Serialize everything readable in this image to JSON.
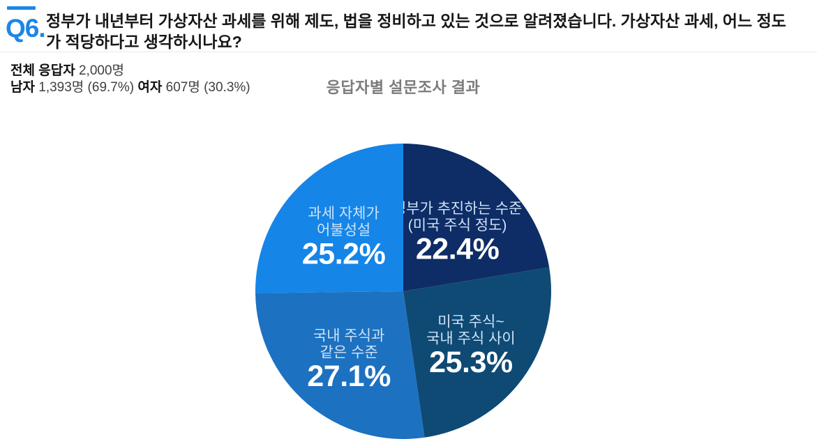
{
  "question": {
    "number": "Q6.",
    "text": "정부가 내년부터 가상자산 과세를 위해 제도, 법을 정비하고 있는 것으로 알려졌습니다. 가상자산 과세, 어느 정도가 적당하다고 생각하시나요?"
  },
  "respondents": {
    "total_label": "전체 응답자",
    "total_value": "2,000명",
    "male_label": "남자",
    "male_value": "1,393명 (69.7%)",
    "female_label": "여자",
    "female_value": "607명 (30.3%)"
  },
  "chart_data": {
    "type": "pie",
    "title": "응답자별 설문조사 결과",
    "start_angle_deg": 0,
    "direction": "clockwise",
    "unit": "%",
    "categories": [
      "정부가 추진하는 수준 (미국 주식 정도)",
      "미국 주식~ 국내 주식 사이",
      "국내 주식과 같은 수준",
      "과세 자체가 어불성설"
    ],
    "values": [
      22.4,
      25.3,
      27.1,
      25.2
    ],
    "slices": [
      {
        "label": "정부가 추진하는 수준 (미국 주식 정도)",
        "label_lines": [
          "정부가 추진하는 수준",
          "(미국 주식 정도)"
        ],
        "value": 22.4,
        "display": "22.4%",
        "color": "#0e2c66"
      },
      {
        "label": "미국 주식~ 국내 주식 사이",
        "label_lines": [
          "미국 주식~",
          "국내 주식 사이"
        ],
        "value": 25.3,
        "display": "25.3%",
        "color": "#0e4a74"
      },
      {
        "label": "국내 주식과 같은 수준",
        "label_lines": [
          "국내 주식과",
          "같은 수준"
        ],
        "value": 27.1,
        "display": "27.1%",
        "color": "#1c71c1"
      },
      {
        "label": "과세 자체가 어불성설",
        "label_lines": [
          "과세 자체가",
          "어불성설"
        ],
        "value": 25.2,
        "display": "25.2%",
        "color": "#1585e8"
      }
    ],
    "label_color": "#cfe3f7",
    "value_color": "#ffffff",
    "legend": "none"
  },
  "colors": {
    "accent_blue": "#1d86e6",
    "divider_gray": "#e9e9ec",
    "title_gray": "#7b7b7b",
    "text_dark": "#161616"
  }
}
